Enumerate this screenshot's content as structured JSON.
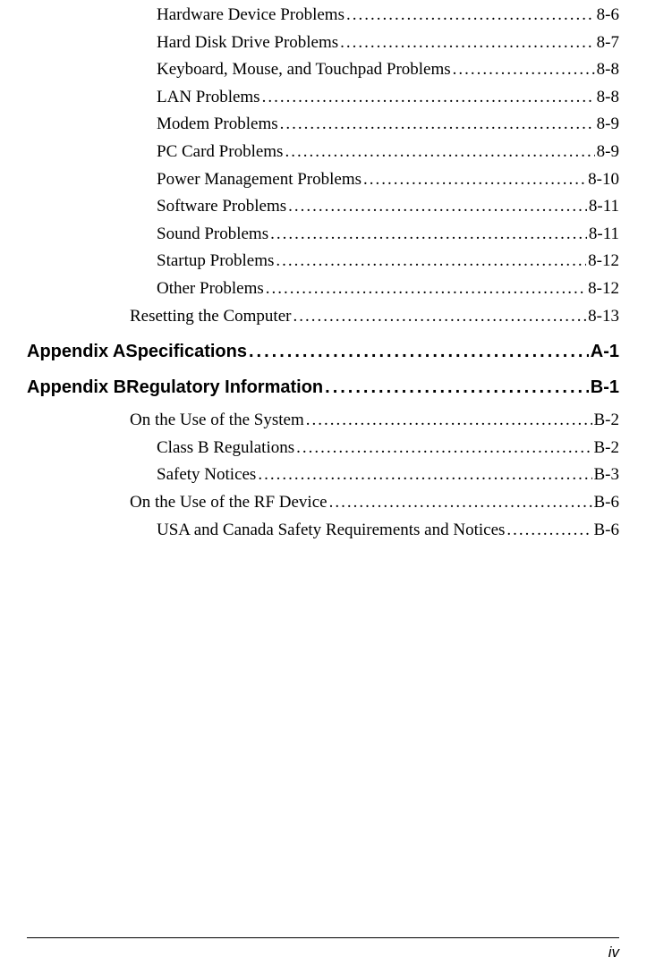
{
  "toc": [
    {
      "level": 2,
      "prefix": "",
      "title": "Hardware Device Problems",
      "page": "8-6",
      "heading": false
    },
    {
      "level": 2,
      "prefix": "",
      "title": "Hard Disk Drive Problems",
      "page": "8-7",
      "heading": false
    },
    {
      "level": 2,
      "prefix": "",
      "title": "Keyboard, Mouse, and Touchpad Problems",
      "page": "8-8",
      "heading": false
    },
    {
      "level": 2,
      "prefix": "",
      "title": "LAN Problems",
      "page": "8-8",
      "heading": false
    },
    {
      "level": 2,
      "prefix": "",
      "title": "Modem Problems",
      "page": "8-9",
      "heading": false
    },
    {
      "level": 2,
      "prefix": "",
      "title": "PC Card Problems",
      "page": "8-9",
      "heading": false
    },
    {
      "level": 2,
      "prefix": "",
      "title": "Power Management Problems",
      "page": "8-10",
      "heading": false
    },
    {
      "level": 2,
      "prefix": "",
      "title": "Software Problems",
      "page": "8-11",
      "heading": false
    },
    {
      "level": 2,
      "prefix": "",
      "title": "Sound Problems",
      "page": "8-11",
      "heading": false
    },
    {
      "level": 2,
      "prefix": "",
      "title": "Startup Problems",
      "page": "8-12",
      "heading": false
    },
    {
      "level": 2,
      "prefix": "",
      "title": "Other Problems",
      "page": "8-12",
      "heading": false
    },
    {
      "level": 1,
      "prefix": "",
      "title": "Resetting the Computer",
      "page": "8-13",
      "heading": false
    },
    {
      "level": 0,
      "prefix": "Appendix A ",
      "title": "Specifications",
      "page": "A-1",
      "heading": true
    },
    {
      "level": 0,
      "prefix": "Appendix B ",
      "title": "Regulatory Information",
      "page": "B-1",
      "heading": true
    },
    {
      "level": 1,
      "prefix": "",
      "title": "On the Use of the System",
      "page": "B-2",
      "heading": false
    },
    {
      "level": 2,
      "prefix": "",
      "title": "Class B Regulations",
      "page": "B-2",
      "heading": false
    },
    {
      "level": 2,
      "prefix": "",
      "title": "Safety Notices",
      "page": "B-3",
      "heading": false
    },
    {
      "level": 1,
      "prefix": "",
      "title": "On the Use of the RF Device",
      "page": "B-6",
      "heading": false
    },
    {
      "level": 2,
      "prefix": "",
      "title": "USA and Canada Safety Requirements and Notices",
      "page": "B-6",
      "heading": false
    }
  ],
  "footer": {
    "page_label": "iv"
  },
  "colors": {
    "text": "#000000",
    "background": "#ffffff"
  },
  "typography": {
    "body_font": "Times New Roman",
    "heading_font": "Arial",
    "body_size_pt": 14,
    "heading_size_pt": 15
  }
}
